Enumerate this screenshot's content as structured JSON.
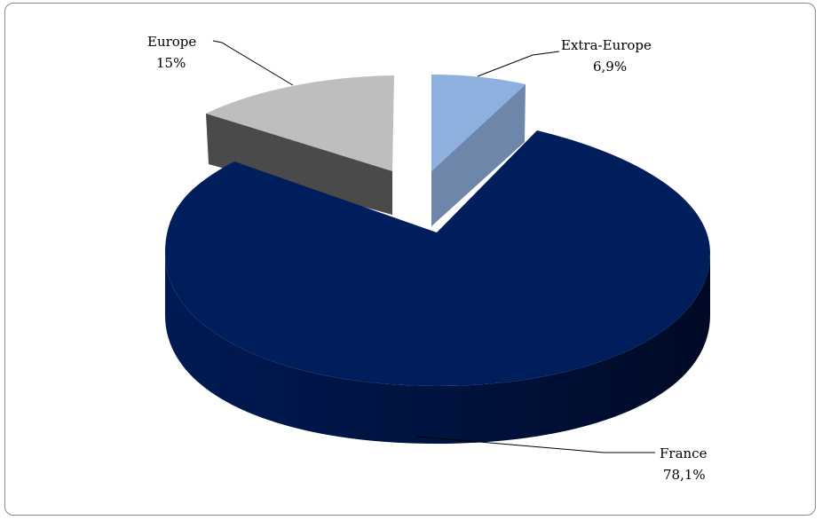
{
  "chart_data": {
    "type": "pie",
    "style": "3d-exploded",
    "title": "",
    "legend": "none",
    "slices": [
      {
        "name": "France",
        "label": "France",
        "pct_label": "78,1%",
        "value": 78.1,
        "color": "#001e5c",
        "side_color": "#001448"
      },
      {
        "name": "Europe",
        "label": "Europe",
        "pct_label": "15%",
        "value": 15.0,
        "color": "#bebebe",
        "side_color": "#4a4a4a"
      },
      {
        "name": "Extra-Europe",
        "label": "Extra-Europe",
        "pct_label": "6,9%",
        "value": 6.9,
        "color": "#8db0de",
        "side_color": "#6f86ab"
      }
    ]
  }
}
